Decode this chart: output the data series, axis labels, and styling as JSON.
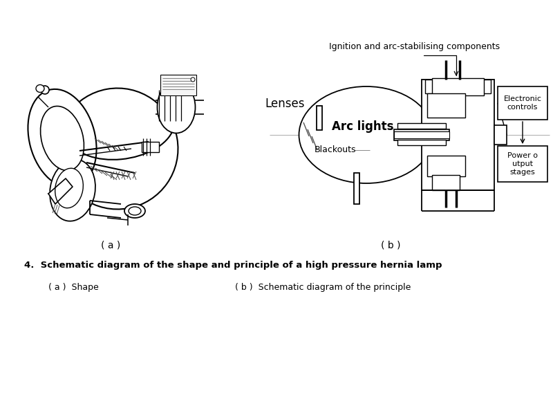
{
  "bg_color": "#ffffff",
  "title_text": "4.  Schematic diagram of the shape and principle of a high pressure hernia lamp",
  "subtitle_a": "( a )  Shape",
  "subtitle_b": "( b )  Schematic diagram of the principle",
  "label_a": "( a )",
  "label_b": "( b )",
  "arc_lights_label": "Arc lights",
  "blackouts_label": "Blackouts",
  "lenses_label": "Lenses",
  "ignition_label": "Ignition and arc-stabilising components",
  "electronic_label": "Electronic\ncontrols",
  "power_label": "Power o\nutput\nstages",
  "line_color": "#000000",
  "text_color": "#000000",
  "fig_width": 8.0,
  "fig_height": 6.0,
  "dpi": 100
}
